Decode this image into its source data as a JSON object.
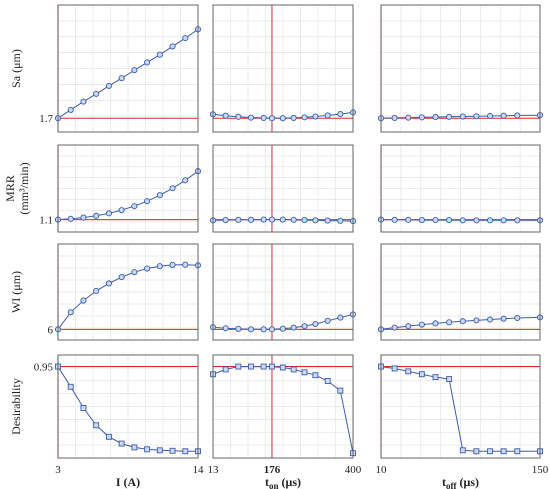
{
  "colors": {
    "series": "#3e5ca8",
    "marker_fill": "#c9dbf2",
    "optimum_line": "#d62a2a",
    "grid": "#e4e4e4",
    "axis": "#555555"
  },
  "rows": [
    {
      "ylabel": [
        "Sa (μm)"
      ],
      "ytick": "1.7",
      "marker": "circle"
    },
    {
      "ylabel": [
        "MRR",
        "(mm³/min)"
      ],
      "ytick": "1.1",
      "marker": "circle"
    },
    {
      "ylabel": [
        "WI (μm)"
      ],
      "ytick": "6",
      "marker": "circle"
    },
    {
      "ylabel": [
        "Desirability"
      ],
      "ytick": "0.95",
      "marker": "square"
    }
  ],
  "columns": [
    {
      "xlabel_main": "I (A)",
      "xlabel_sub": "",
      "ticks": [
        "3",
        "14"
      ],
      "bold_ticks": []
    },
    {
      "xlabel_main": "t",
      "xlabel_sub": "on",
      "xlabel_unit": " (μs)",
      "ticks": [
        "13",
        "176",
        "400"
      ],
      "bold_ticks": [
        "176"
      ]
    },
    {
      "xlabel_main": "t",
      "xlabel_sub": "off",
      "xlabel_unit": " (μs)",
      "ticks": [
        "10",
        "150"
      ],
      "bold_ticks": []
    }
  ],
  "chart_data": {
    "type": "line",
    "grid": true,
    "optimum": {
      "I (A)": 3,
      "ton (μs)": 176,
      "toff (μs)": 10,
      "Desirability": 0.95
    },
    "x": {
      "I (A)": [
        3,
        4,
        5,
        6,
        7,
        8,
        9,
        10,
        11,
        12,
        13,
        14
      ],
      "ton (μs)": [
        13,
        48,
        83,
        118,
        153,
        176,
        206,
        236,
        266,
        296,
        330,
        365,
        400
      ],
      "toff (μs)": [
        10,
        22,
        34,
        46,
        58,
        70,
        82,
        94,
        106,
        118,
        130,
        150
      ]
    },
    "xlim": {
      "I (A)": [
        3,
        14
      ],
      "ton (μs)": [
        13,
        400
      ],
      "toff (μs)": [
        10,
        150
      ]
    },
    "panels": [
      {
        "row": "Sa (μm)",
        "col": "I (A)",
        "ylim": [
          1.2,
          5.8
        ],
        "y": [
          1.7,
          2.0,
          2.3,
          2.58,
          2.87,
          3.15,
          3.44,
          3.72,
          4.0,
          4.3,
          4.6,
          4.92
        ]
      },
      {
        "row": "Sa (μm)",
        "col": "ton (μs)",
        "ylim": [
          1.2,
          5.8
        ],
        "y": [
          1.84,
          1.79,
          1.75,
          1.72,
          1.71,
          1.7,
          1.7,
          1.71,
          1.73,
          1.76,
          1.8,
          1.85,
          1.91
        ]
      },
      {
        "row": "Sa (μm)",
        "col": "toff (μs)",
        "ylim": [
          1.2,
          5.8
        ],
        "y": [
          1.7,
          1.71,
          1.72,
          1.73,
          1.74,
          1.75,
          1.76,
          1.77,
          1.78,
          1.79,
          1.8,
          1.81
        ]
      },
      {
        "row": "MRR (mm³/min)",
        "col": "I (A)",
        "ylim": [
          0.6,
          4.1
        ],
        "y": [
          1.1,
          1.13,
          1.18,
          1.25,
          1.35,
          1.48,
          1.64,
          1.84,
          2.08,
          2.36,
          2.68,
          3.05
        ]
      },
      {
        "row": "MRR (mm³/min)",
        "col": "ton (μs)",
        "ylim": [
          0.6,
          4.1
        ],
        "y": [
          1.07,
          1.08,
          1.09,
          1.09,
          1.1,
          1.1,
          1.1,
          1.09,
          1.08,
          1.07,
          1.06,
          1.05,
          1.04
        ]
      },
      {
        "row": "MRR (mm³/min)",
        "col": "toff (μs)",
        "ylim": [
          0.6,
          4.1
        ],
        "y": [
          1.1,
          1.09,
          1.09,
          1.08,
          1.08,
          1.08,
          1.07,
          1.07,
          1.07,
          1.07,
          1.07,
          1.07
        ]
      },
      {
        "row": "WI (μm)",
        "col": "I (A)",
        "ylim": [
          5.5,
          10.0
        ],
        "y": [
          6.0,
          6.8,
          7.35,
          7.8,
          8.15,
          8.45,
          8.68,
          8.85,
          8.96,
          9.02,
          9.03,
          9.0
        ]
      },
      {
        "row": "WI (μm)",
        "col": "ton (μs)",
        "ylim": [
          5.5,
          10.0
        ],
        "y": [
          6.1,
          6.05,
          6.02,
          6.0,
          6.0,
          6.0,
          6.03,
          6.08,
          6.15,
          6.25,
          6.4,
          6.55,
          6.7
        ]
      },
      {
        "row": "WI (μm)",
        "col": "toff (μs)",
        "ylim": [
          5.5,
          10.0
        ],
        "y": [
          6.0,
          6.08,
          6.15,
          6.22,
          6.28,
          6.33,
          6.38,
          6.42,
          6.46,
          6.5,
          6.53,
          6.56
        ]
      },
      {
        "row": "Desirability",
        "col": "I (A)",
        "ylim": [
          0.0,
          1.07
        ],
        "y": [
          0.95,
          0.74,
          0.52,
          0.34,
          0.22,
          0.15,
          0.11,
          0.09,
          0.08,
          0.075,
          0.07,
          0.07
        ]
      },
      {
        "row": "Desirability",
        "col": "ton (μs)",
        "ylim": [
          0.0,
          1.07
        ],
        "y": [
          0.87,
          0.92,
          0.95,
          0.95,
          0.95,
          0.95,
          0.94,
          0.92,
          0.89,
          0.86,
          0.8,
          0.7,
          0.05
        ]
      },
      {
        "row": "Desirability",
        "col": "toff (μs)",
        "ylim": [
          0.0,
          1.07
        ],
        "y": [
          0.95,
          0.93,
          0.9,
          0.87,
          0.84,
          0.82,
          0.08,
          0.07,
          0.07,
          0.07,
          0.07,
          0.07
        ]
      }
    ]
  }
}
